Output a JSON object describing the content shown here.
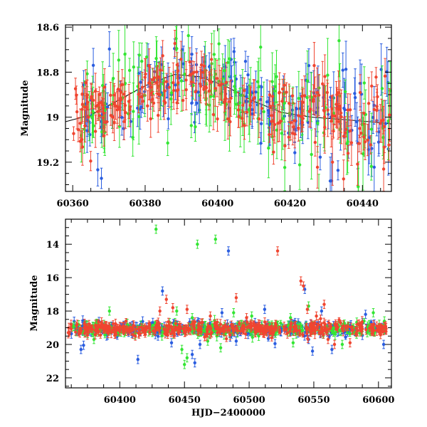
{
  "chart_data": [
    {
      "type": "scatter",
      "panel": "top",
      "xlabel": "",
      "ylabel": "Magnitude",
      "xlim": [
        60358,
        60448
      ],
      "ylim": [
        19.33,
        18.59
      ],
      "y_inverted": true,
      "xticks": [
        60360,
        60380,
        60400,
        60420,
        60440
      ],
      "yticks": [
        18.6,
        18.8,
        19,
        19.2
      ],
      "ytick_labels": [
        "18.6",
        "18.8",
        "19",
        "19.2"
      ],
      "error_bars": true,
      "grid": false,
      "legend": "none",
      "series": [
        {
          "color": "#2a5de0",
          "seed": 11,
          "x_range": [
            60362,
            60448
          ],
          "n": 170,
          "err": [
            0.04,
            0.1
          ]
        },
        {
          "color": "#33e633",
          "seed": 23,
          "x_range": [
            60362,
            60448
          ],
          "n": 150,
          "err": [
            0.05,
            0.14
          ]
        },
        {
          "color": "#f04530",
          "seed": 37,
          "x_range": [
            60360,
            60448
          ],
          "n": 260,
          "err": [
            0.03,
            0.09
          ]
        }
      ],
      "model_curve": {
        "color": "#000000",
        "points": [
          [
            60358,
            19.02
          ],
          [
            60365,
            18.99
          ],
          [
            60372,
            18.93
          ],
          [
            60380,
            18.86
          ],
          [
            60388,
            18.81
          ],
          [
            60395,
            18.82
          ],
          [
            60402,
            18.86
          ],
          [
            60410,
            18.93
          ],
          [
            60418,
            18.98
          ],
          [
            60426,
            19.0
          ],
          [
            60434,
            19.01
          ],
          [
            60442,
            19.02
          ],
          [
            60448,
            19.03
          ]
        ]
      }
    },
    {
      "type": "scatter",
      "panel": "bottom",
      "xlabel": "HJD−2400000",
      "ylabel": "Magnitude",
      "xlim": [
        60358,
        60610
      ],
      "ylim": [
        22.6,
        12.5
      ],
      "y_inverted": true,
      "xticks": [
        60400,
        60450,
        60500,
        60550,
        60600
      ],
      "yticks": [
        14,
        16,
        18,
        20,
        22
      ],
      "ytick_labels": [
        "14",
        "16",
        "18",
        "20",
        "22"
      ],
      "error_bars": true,
      "grid": false,
      "legend": "none",
      "series": [
        {
          "color": "#2a5de0",
          "seed": 101,
          "x_range": [
            60362,
            60606
          ],
          "n": 330,
          "outliers": [
            [
              60370,
              20.3
            ],
            [
              60372,
              20.05
            ],
            [
              60414,
              20.9
            ],
            [
              60433,
              16.8
            ],
            [
              60440,
              19.9
            ],
            [
              60456,
              20.6
            ],
            [
              60458,
              21.1
            ],
            [
              60462,
              20.0
            ],
            [
              60484,
              14.4
            ],
            [
              60490,
              19.8
            ],
            [
              60512,
              17.9
            ],
            [
              60543,
              16.7
            ],
            [
              60546,
              19.7
            ],
            [
              60549,
              20.4
            ],
            [
              60556,
              18.0
            ],
            [
              60564,
              20.3
            ],
            [
              60590,
              18.2
            ],
            [
              60604,
              20.0
            ],
            [
              60479,
              18.1
            ],
            [
              60520,
              19.95
            ]
          ]
        },
        {
          "color": "#33e633",
          "seed": 202,
          "x_range": [
            60362,
            60606
          ],
          "n": 300,
          "outliers": [
            [
              60428,
              13.1
            ],
            [
              60444,
              18.0
            ],
            [
              60448,
              20.3
            ],
            [
              60450,
              21.2
            ],
            [
              60452,
              20.8
            ],
            [
              60456,
              18.4
            ],
            [
              60460,
              14.0
            ],
            [
              60474,
              13.7
            ],
            [
              60478,
              20.2
            ],
            [
              60488,
              18.1
            ],
            [
              60392,
              18.0
            ],
            [
              60502,
              18.3
            ],
            [
              60534,
              19.9
            ],
            [
              60546,
              17.7
            ],
            [
              60572,
              20.0
            ],
            [
              60596,
              18.1
            ],
            [
              60468,
              19.8
            ],
            [
              60532,
              18.4
            ],
            [
              60380,
              19.7
            ]
          ]
        },
        {
          "color": "#f04530",
          "seed": 303,
          "x_range": [
            60360,
            60606
          ],
          "n": 420,
          "outliers": [
            [
              60431,
              18.0
            ],
            [
              60436,
              17.3
            ],
            [
              60441,
              17.8
            ],
            [
              60452,
              17.9
            ],
            [
              60470,
              18.3
            ],
            [
              60490,
              17.2
            ],
            [
              60522,
              14.4
            ],
            [
              60540,
              16.2
            ],
            [
              60542,
              16.5
            ],
            [
              60545,
              17.9
            ],
            [
              60552,
              18.3
            ],
            [
              60558,
              17.6
            ],
            [
              60561,
              19.7
            ],
            [
              60566,
              20.0
            ],
            [
              60578,
              19.9
            ],
            [
              60498,
              18.4
            ],
            [
              60412,
              19.5
            ]
          ]
        }
      ]
    }
  ],
  "colors": {
    "blue": "#2a5de0",
    "green": "#33e633",
    "red": "#f04530",
    "axis": "#000000"
  }
}
